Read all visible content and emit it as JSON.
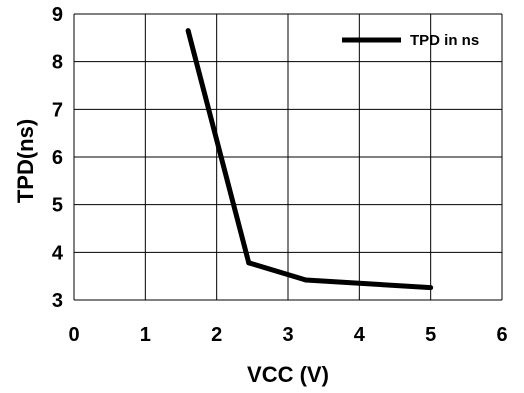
{
  "chart_data": {
    "type": "line",
    "title": "",
    "xlabel": "VCC (V)",
    "ylabel": "TPD(ns)",
    "xlim": [
      0,
      6
    ],
    "ylim": [
      3,
      9
    ],
    "x_ticks": [
      0,
      1,
      2,
      3,
      4,
      5,
      6
    ],
    "y_ticks": [
      3,
      4,
      5,
      6,
      7,
      8,
      9
    ],
    "grid": true,
    "legend_position": "top-right",
    "series": [
      {
        "name": "TPD in ns",
        "color": "#000000",
        "x": [
          1.6,
          2.45,
          3.25,
          5.0
        ],
        "y": [
          8.65,
          3.78,
          3.42,
          3.26
        ]
      }
    ]
  }
}
